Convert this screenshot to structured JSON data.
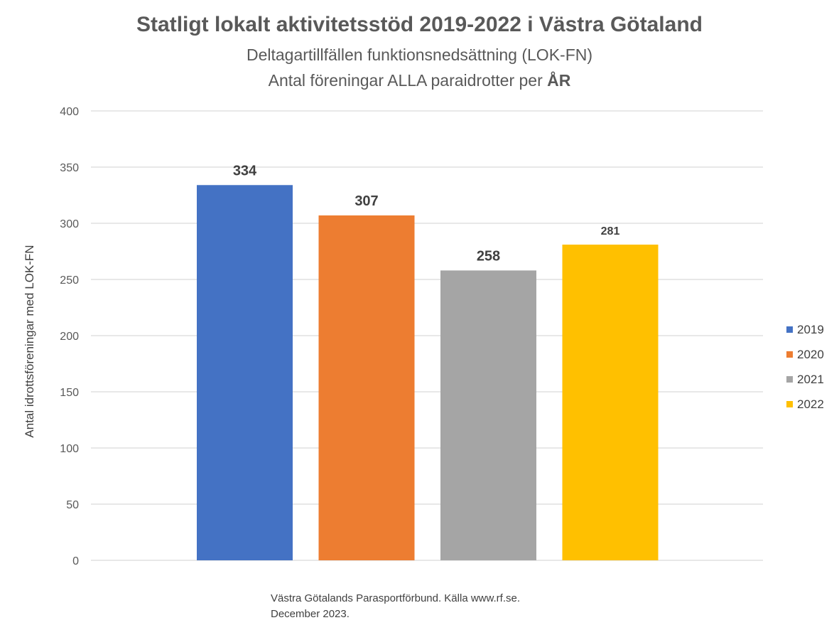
{
  "chart_data": {
    "type": "bar",
    "title": "Statligt lokalt aktivitetsstöd 2019-2022 i Västra Götaland",
    "subtitle_line1": "Deltagartillfällen funktionsnedsättning (LOK-FN)",
    "subtitle_line2_prefix": "Antal föreningar ALLA paraidrotter per ",
    "subtitle_line2_bold": "ÅR",
    "ylabel": "Antal idrottsföreningar med LOK-FN",
    "xlabel": "",
    "ylim": [
      0,
      400
    ],
    "yticks": [
      0,
      50,
      100,
      150,
      200,
      250,
      300,
      350,
      400
    ],
    "grid": true,
    "legend_position": "right",
    "series": [
      {
        "name": "2019",
        "value": 334,
        "color": "#4472C4"
      },
      {
        "name": "2020",
        "value": 307,
        "color": "#ED7D31"
      },
      {
        "name": "2021",
        "value": 258,
        "color": "#A5A5A5"
      },
      {
        "name": "2022",
        "value": 281,
        "color": "#FFC000"
      }
    ]
  },
  "footer": {
    "line1": "Västra Götalands Parasportförbund. Källa www.rf.se.",
    "line2": "December 2023."
  }
}
